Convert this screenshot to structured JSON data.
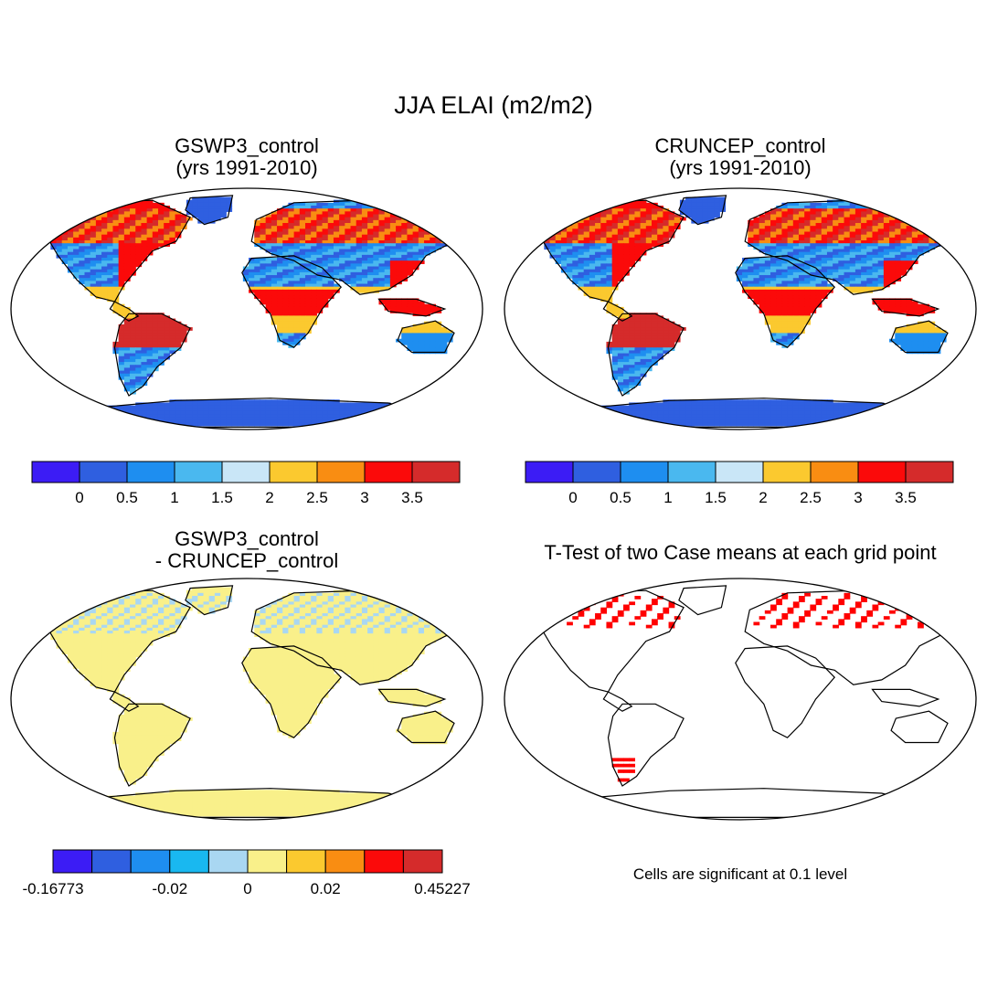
{
  "title": "JJA ELAI (m2/m2)",
  "panels": [
    {
      "id": "gswp3",
      "title_line1": "GSWP3_control",
      "title_line2": "(yrs 1991-2010)",
      "field": "mean"
    },
    {
      "id": "cruncep",
      "title_line1": "CRUNCEP_control",
      "title_line2": "(yrs 1991-2010)",
      "field": "mean"
    },
    {
      "id": "diff",
      "title_line1": "GSWP3_control",
      "title_line2": "- CRUNCEP_control",
      "field": "difference"
    },
    {
      "id": "ttest",
      "title_line1": "T-Test of two Case means at each grid point",
      "title_line2": "",
      "field": "significance"
    }
  ],
  "colorbars": {
    "mean": {
      "colors": [
        "#3c1cf5",
        "#2f5fe0",
        "#1e8ef0",
        "#4ab8ef",
        "#c9e6f7",
        "#fbc92f",
        "#f98d12",
        "#fb0a0a",
        "#d52b2b"
      ],
      "labels": [
        "0",
        "0.5",
        "1",
        "1.5",
        "2",
        "2.5",
        "3",
        "3.5"
      ]
    },
    "diff": {
      "colors": [
        "#3c1cf5",
        "#2f5fe0",
        "#1e8ef0",
        "#19b8f0",
        "#a9d7f2",
        "#f9f08a",
        "#fbc92f",
        "#f98d12",
        "#fb0a0a",
        "#d52b2b"
      ],
      "labels": [
        "-0.16773",
        "-0.02",
        "0",
        "0.02",
        "0.45227"
      ]
    }
  },
  "significance_note": "Cells are significant at 0.1 level",
  "colors": {
    "land_mean_base": "#3c62d9",
    "land_diff_base": "#f9f08a",
    "significant": "#ff0000"
  }
}
